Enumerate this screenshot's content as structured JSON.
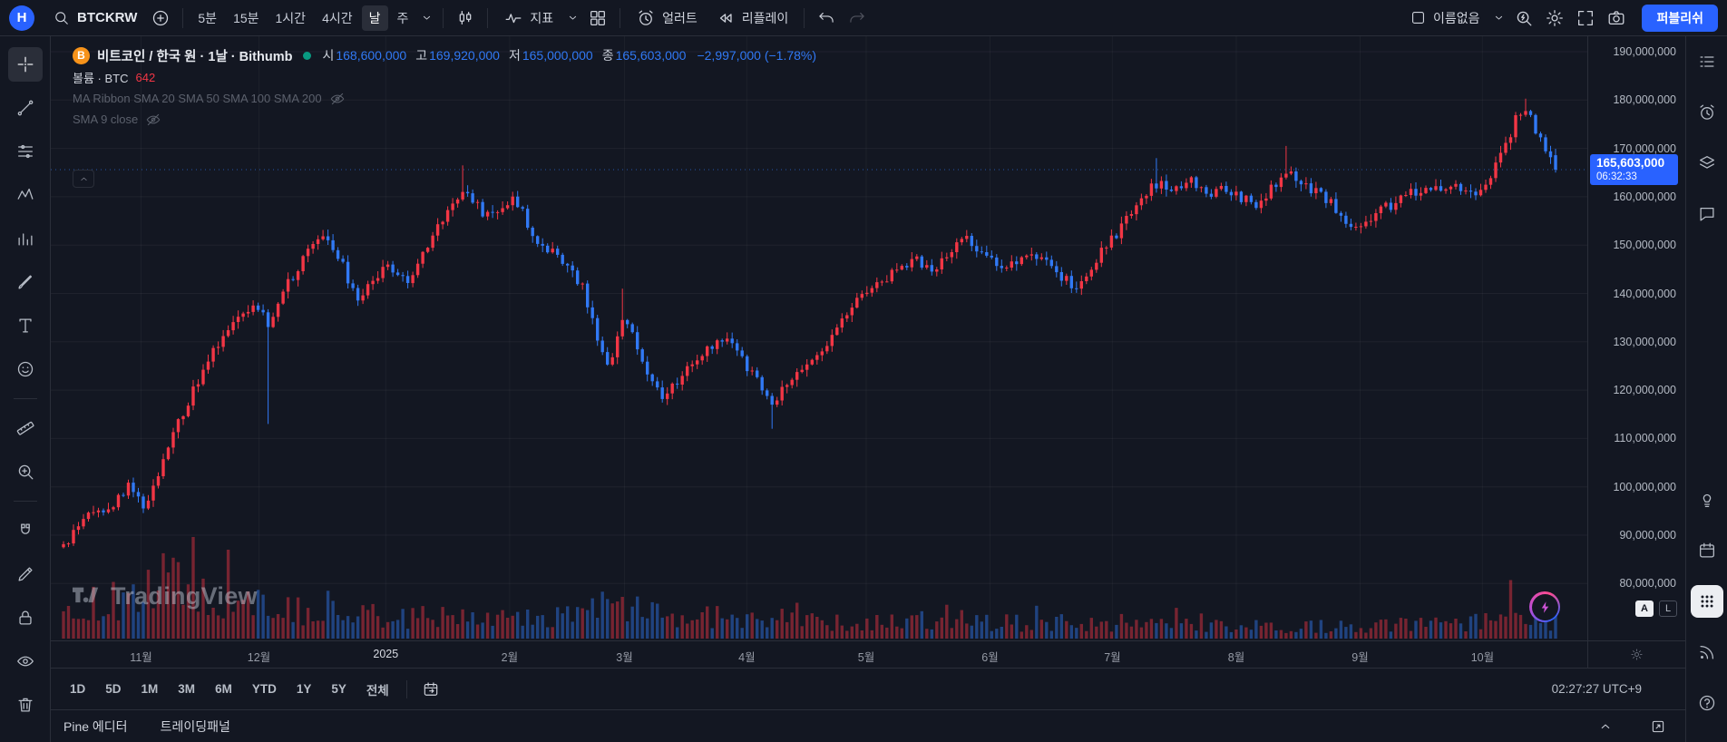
{
  "topbar": {
    "logo": "H",
    "symbol": "BTCKRW",
    "intervals": [
      "5분",
      "15분",
      "1시간",
      "4시간",
      "날",
      "주"
    ],
    "selected_interval": "날",
    "indicators_label": "지표",
    "alert_label": "얼러트",
    "replay_label": "리플레이",
    "layout_name": "이름없음",
    "publish_label": "퍼블리쉬"
  },
  "left_toolbar": {
    "items": [
      {
        "icon": "crosshair",
        "name": "cursor-tool",
        "selected": true
      },
      {
        "icon": "trend-line",
        "name": "trend-line-tool"
      },
      {
        "icon": "fib-retracement",
        "name": "fib-retracement-tool"
      },
      {
        "icon": "pattern",
        "name": "pattern-tool"
      },
      {
        "icon": "forecast",
        "name": "forecast-tool"
      },
      {
        "icon": "brush",
        "name": "brush-tool"
      },
      {
        "icon": "text",
        "name": "text-tool"
      },
      {
        "icon": "emoji",
        "name": "emoji-tool"
      },
      {
        "sep": true
      },
      {
        "icon": "ruler",
        "name": "measure-tool"
      },
      {
        "icon": "zoom-in",
        "name": "zoom-tool"
      },
      {
        "sep": true
      },
      {
        "icon": "magnet",
        "name": "magnet-tool"
      },
      {
        "icon": "pencil",
        "name": "drawing-mode-tool"
      },
      {
        "icon": "lock",
        "name": "lock-drawings-tool"
      },
      {
        "icon": "eye",
        "name": "hide-drawings-tool"
      },
      {
        "icon": "trash",
        "name": "remove-drawings-tool"
      }
    ]
  },
  "sidebar": {
    "top": [
      {
        "icon": "watchlist",
        "name": "watchlist"
      },
      {
        "icon": "alarm",
        "name": "alerts"
      },
      {
        "icon": "layers",
        "name": "object-tree"
      },
      {
        "icon": "chat",
        "name": "chat"
      }
    ],
    "bottom": [
      {
        "icon": "idea",
        "name": "ideas"
      },
      {
        "icon": "calendar",
        "name": "calendar"
      },
      {
        "icon": "apps-grid",
        "name": "more-panels",
        "active": true
      },
      {
        "icon": "broadcast",
        "name": "streams"
      },
      {
        "icon": "help",
        "name": "help"
      }
    ]
  },
  "legend": {
    "symbol_logo": "B",
    "title": "비트코인 / 한국 원 · 1날 · Bithumb",
    "ohlc": [
      {
        "label": "시",
        "value": "168,600,000"
      },
      {
        "label": "고",
        "value": "169,920,000"
      },
      {
        "label": "저",
        "value": "165,000,000"
      },
      {
        "label": "종",
        "value": "165,603,000"
      }
    ],
    "change": "−2,997,000 (−1.78%)",
    "volume_title": "볼륨 · BTC",
    "volume_value": "642",
    "ma_ribbon": "MA Ribbon SMA 20 SMA 50 SMA 100 SMA 200",
    "sma": "SMA 9 close"
  },
  "price_axis": {
    "labels": [
      "190,000,000",
      "180,000,000",
      "170,000,000",
      "160,000,000",
      "150,000,000",
      "140,000,000",
      "130,000,000",
      "120,000,000",
      "110,000,000",
      "100,000,000",
      "90,000,000",
      "80,000,000"
    ],
    "last_price": "165,603,000",
    "countdown": "06:32:33",
    "auto_label": "A",
    "log_label": "L"
  },
  "bottom_toolbar": {
    "ranges": [
      "1D",
      "5D",
      "1M",
      "3M",
      "6M",
      "YTD",
      "1Y",
      "5Y",
      "전체"
    ],
    "clock": "02:27:27 UTC+9"
  },
  "footer": {
    "tabs": [
      "Pine 에디터",
      "트레이딩패널"
    ]
  },
  "watermark": "TradingView",
  "colors": {
    "up": "#f23645",
    "down": "#3179f5",
    "accent": "#2962ff"
  },
  "chart_data": {
    "type": "candlestick",
    "symbol": "BTCKRW",
    "exchange": "Bithumb",
    "interval": "1날",
    "price_unit": "KRW, millions",
    "ohlc_today": {
      "open": 168600000,
      "high": 169920000,
      "low": 165000000,
      "close": 165603000,
      "change": -2997000,
      "change_pct": -1.78
    },
    "last_price_value": 165.603,
    "ylim": [
      80,
      190
    ],
    "y_ticks": [
      190,
      180,
      170,
      160,
      150,
      140,
      130,
      120,
      110,
      100,
      90,
      80
    ],
    "x_ticks": [
      {
        "t": 0.052,
        "label": "11월"
      },
      {
        "t": 0.131,
        "label": "12월"
      },
      {
        "t": 0.216,
        "label": "2025",
        "year": true
      },
      {
        "t": 0.299,
        "label": "2월"
      },
      {
        "t": 0.376,
        "label": "3월"
      },
      {
        "t": 0.458,
        "label": "4월"
      },
      {
        "t": 0.538,
        "label": "5월"
      },
      {
        "t": 0.621,
        "label": "6월"
      },
      {
        "t": 0.703,
        "label": "7월"
      },
      {
        "t": 0.786,
        "label": "8월"
      },
      {
        "t": 0.869,
        "label": "9월"
      },
      {
        "t": 0.951,
        "label": "10월"
      }
    ],
    "anchors": [
      [
        0,
        88
      ],
      [
        0.017,
        95
      ],
      [
        0.032,
        96
      ],
      [
        0.043,
        100
      ],
      [
        0.054,
        96
      ],
      [
        0.069,
        107
      ],
      [
        0.078,
        114
      ],
      [
        0.089,
        121
      ],
      [
        0.1,
        128
      ],
      [
        0.113,
        133
      ],
      [
        0.126,
        138
      ],
      [
        0.137,
        134
      ],
      [
        0.148,
        141
      ],
      [
        0.159,
        146
      ],
      [
        0.17,
        151
      ],
      [
        0.177,
        152
      ],
      [
        0.188,
        145
      ],
      [
        0.196,
        139
      ],
      [
        0.207,
        143
      ],
      [
        0.218,
        146
      ],
      [
        0.229,
        142
      ],
      [
        0.241,
        148
      ],
      [
        0.251,
        154
      ],
      [
        0.262,
        158
      ],
      [
        0.269,
        161
      ],
      [
        0.28,
        157
      ],
      [
        0.292,
        156
      ],
      [
        0.299,
        160
      ],
      [
        0.306,
        158
      ],
      [
        0.314,
        152
      ],
      [
        0.325,
        149
      ],
      [
        0.336,
        146
      ],
      [
        0.347,
        142
      ],
      [
        0.358,
        131
      ],
      [
        0.366,
        125
      ],
      [
        0.376,
        136
      ],
      [
        0.384,
        130
      ],
      [
        0.394,
        122
      ],
      [
        0.403,
        118
      ],
      [
        0.413,
        123
      ],
      [
        0.424,
        126
      ],
      [
        0.435,
        129
      ],
      [
        0.443,
        131
      ],
      [
        0.453,
        127
      ],
      [
        0.464,
        122
      ],
      [
        0.475,
        117
      ],
      [
        0.486,
        122
      ],
      [
        0.497,
        124
      ],
      [
        0.508,
        128
      ],
      [
        0.517,
        133
      ],
      [
        0.528,
        137
      ],
      [
        0.539,
        140
      ],
      [
        0.55,
        143
      ],
      [
        0.561,
        145
      ],
      [
        0.572,
        147
      ],
      [
        0.582,
        144
      ],
      [
        0.593,
        148
      ],
      [
        0.601,
        152
      ],
      [
        0.616,
        148
      ],
      [
        0.627,
        145
      ],
      [
        0.638,
        147
      ],
      [
        0.649,
        149
      ],
      [
        0.66,
        146
      ],
      [
        0.671,
        143
      ],
      [
        0.678,
        141
      ],
      [
        0.689,
        146
      ],
      [
        0.7,
        150
      ],
      [
        0.712,
        155
      ],
      [
        0.723,
        160
      ],
      [
        0.734,
        163
      ],
      [
        0.745,
        161
      ],
      [
        0.756,
        163
      ],
      [
        0.767,
        160
      ],
      [
        0.778,
        162
      ],
      [
        0.789,
        160
      ],
      [
        0.8,
        158
      ],
      [
        0.811,
        162
      ],
      [
        0.82,
        165
      ],
      [
        0.833,
        162
      ],
      [
        0.844,
        160
      ],
      [
        0.855,
        157
      ],
      [
        0.866,
        153
      ],
      [
        0.877,
        156
      ],
      [
        0.888,
        158
      ],
      [
        0.899,
        160
      ],
      [
        0.911,
        162
      ],
      [
        0.922,
        161
      ],
      [
        0.933,
        163
      ],
      [
        0.944,
        160
      ],
      [
        0.955,
        163
      ],
      [
        0.966,
        170
      ],
      [
        0.973,
        176
      ],
      [
        0.981,
        178
      ],
      [
        0.988,
        173
      ],
      [
        0.996,
        169
      ],
      [
        1,
        165.6
      ]
    ],
    "wicks": [
      {
        "t": 0.137,
        "low": 113
      },
      {
        "t": 0.269,
        "high": 166.5
      },
      {
        "t": 0.376,
        "high": 141
      },
      {
        "t": 0.475,
        "low": 112
      },
      {
        "t": 0.734,
        "high": 168
      },
      {
        "t": 0.82,
        "high": 170.5
      },
      {
        "t": 0.981,
        "high": 180.3
      }
    ],
    "volume_anchors": [
      [
        0,
        38
      ],
      [
        0.02,
        55
      ],
      [
        0.05,
        48
      ],
      [
        0.07,
        88
      ],
      [
        0.085,
        70
      ],
      [
        0.1,
        50
      ],
      [
        0.13,
        42
      ],
      [
        0.17,
        34
      ],
      [
        0.22,
        30
      ],
      [
        0.28,
        26
      ],
      [
        0.33,
        30
      ],
      [
        0.37,
        44
      ],
      [
        0.41,
        30
      ],
      [
        0.46,
        26
      ],
      [
        0.5,
        24
      ],
      [
        0.55,
        22
      ],
      [
        0.6,
        26
      ],
      [
        0.65,
        20
      ],
      [
        0.7,
        22
      ],
      [
        0.75,
        20
      ],
      [
        0.8,
        18
      ],
      [
        0.85,
        16
      ],
      [
        0.9,
        18
      ],
      [
        0.95,
        22
      ],
      [
        0.975,
        30
      ],
      [
        1,
        24
      ]
    ]
  }
}
